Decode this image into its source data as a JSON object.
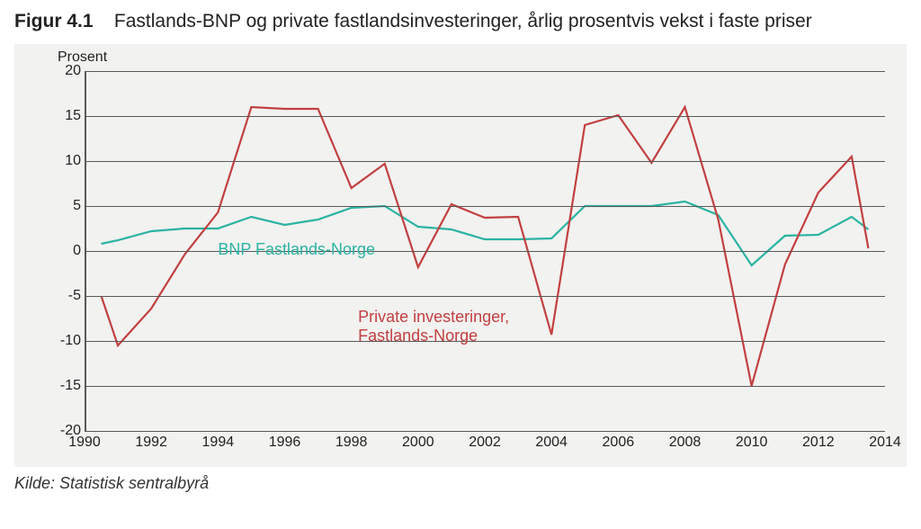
{
  "title": {
    "fignum": "Figur 4.1",
    "text": "Fastlands-BNP og private fastlandsinvesteringer, årlig prosentvis vekst i faste priser"
  },
  "ylabel": "Prosent",
  "source": "Kilde: Statistisk sentralbyrå",
  "chart": {
    "type": "line",
    "background_color": "#f2f2f0",
    "grid_color": "#595959",
    "axis_color": "#595959",
    "ylim": [
      -20,
      20
    ],
    "yticks": [
      -20,
      -15,
      -10,
      -5,
      0,
      5,
      10,
      15,
      20
    ],
    "xlim": [
      1990,
      2014
    ],
    "xticks": [
      1990,
      1992,
      1994,
      1996,
      1998,
      2000,
      2002,
      2004,
      2006,
      2008,
      2010,
      2012,
      2014
    ],
    "line_width": 2.2,
    "series": [
      {
        "id": "bnp",
        "label": "BNP Fastlands-Norge",
        "color": "#2bb3a3",
        "label_x": 1994.0,
        "label_y": 1.2,
        "years": [
          1990.5,
          1991,
          1992,
          1993,
          1994,
          1995,
          1996,
          1997,
          1998,
          1999,
          2000,
          2001,
          2002,
          2003,
          2004,
          2005,
          2006,
          2007,
          2008,
          2009,
          2010,
          2011,
          2012,
          2013,
          2013.5
        ],
        "values": [
          0.8,
          1.2,
          2.2,
          2.5,
          2.5,
          3.8,
          2.9,
          3.5,
          4.8,
          5.0,
          2.7,
          2.4,
          1.3,
          1.3,
          1.4,
          5.0,
          5.0,
          5.0,
          5.5,
          4.0,
          -1.6,
          1.7,
          1.8,
          3.8,
          2.4
        ]
      },
      {
        "id": "priv",
        "label": "Private investeringer,\nFastlands-Norge",
        "color": "#c24040",
        "label_x": 1998.2,
        "label_y": -6.3,
        "years": [
          1990.5,
          1991,
          1992,
          1993,
          1994,
          1995,
          1996,
          1997,
          1998,
          1999,
          2000,
          2001,
          2002,
          2003,
          2004,
          2005,
          2006,
          2007,
          2008,
          2009,
          2010,
          2011,
          2012,
          2013,
          2013.5
        ],
        "values": [
          -5.0,
          -10.5,
          -6.4,
          -0.4,
          4.3,
          16.0,
          15.8,
          15.8,
          7.0,
          9.7,
          -1.8,
          5.2,
          3.7,
          3.8,
          -9.3,
          14.0,
          15.1,
          9.8,
          16.0,
          3.5,
          -15.0,
          -1.5,
          6.5,
          10.5,
          0.3
        ]
      }
    ]
  }
}
